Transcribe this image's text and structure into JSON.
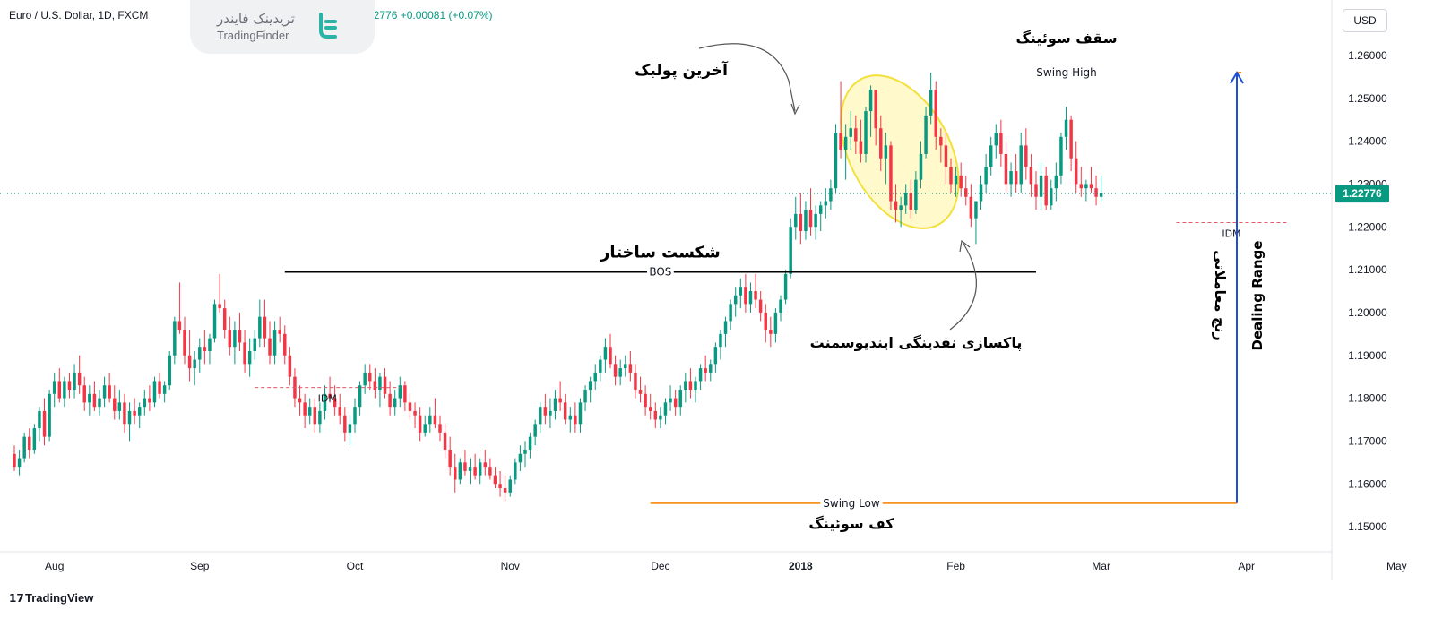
{
  "header": {
    "symbol": "Euro / U.S. Dollar, 1D, FXCM",
    "price_part": "1.22776",
    "change": "+0.00081 (+0.07%)"
  },
  "watermark": {
    "fa": "تریدینک فایندر",
    "en": "TradingFinder"
  },
  "currency_button": "USD",
  "brand": "TradingView",
  "colors": {
    "up": "#089981",
    "down": "#f23645",
    "swing": "#f7931a",
    "range": "#1f4fd8",
    "idm": "#e05a6a",
    "highlight": "#fff4a3",
    "highlight_stroke": "#f2e03b"
  },
  "chart_data": {
    "type": "candlestick",
    "ylim": [
      1.145,
      1.265
    ],
    "y_ticks": [
      "1.26000",
      "1.25000",
      "1.24000",
      "1.23000",
      "1.22000",
      "1.21000",
      "1.20000",
      "1.19000",
      "1.18000",
      "1.17000",
      "1.16000",
      "1.15000"
    ],
    "y_tick_values": [
      1.26,
      1.25,
      1.24,
      1.23,
      1.22,
      1.21,
      1.2,
      1.19,
      1.18,
      1.17,
      1.16,
      1.15
    ],
    "x_ticks": [
      "Aug",
      "Sep",
      "Oct",
      "Nov",
      "Dec",
      "2018",
      "Feb",
      "Mar",
      "Apr",
      "May"
    ],
    "x_tick_index": [
      8,
      37,
      68,
      99,
      129,
      157,
      188,
      217,
      246,
      276
    ],
    "last_price": "1.22776",
    "last_price_value": 1.22776,
    "candles": [
      [
        1.167,
        1.169,
        1.163,
        1.164
      ],
      [
        1.164,
        1.168,
        1.162,
        1.166
      ],
      [
        1.166,
        1.172,
        1.165,
        1.171
      ],
      [
        1.171,
        1.173,
        1.166,
        1.168
      ],
      [
        1.168,
        1.174,
        1.167,
        1.173
      ],
      [
        1.173,
        1.178,
        1.17,
        1.177
      ],
      [
        1.177,
        1.18,
        1.169,
        1.171
      ],
      [
        1.171,
        1.182,
        1.17,
        1.181
      ],
      [
        1.181,
        1.186,
        1.178,
        1.184
      ],
      [
        1.184,
        1.187,
        1.179,
        1.18
      ],
      [
        1.18,
        1.185,
        1.178,
        1.184
      ],
      [
        1.184,
        1.186,
        1.18,
        1.182
      ],
      [
        1.182,
        1.188,
        1.18,
        1.186
      ],
      [
        1.186,
        1.19,
        1.181,
        1.183
      ],
      [
        1.183,
        1.185,
        1.177,
        1.179
      ],
      [
        1.179,
        1.183,
        1.176,
        1.181
      ],
      [
        1.181,
        1.184,
        1.177,
        1.178
      ],
      [
        1.178,
        1.182,
        1.176,
        1.18
      ],
      [
        1.18,
        1.185,
        1.178,
        1.183
      ],
      [
        1.183,
        1.186,
        1.179,
        1.18
      ],
      [
        1.18,
        1.183,
        1.175,
        1.177
      ],
      [
        1.177,
        1.182,
        1.175,
        1.179
      ],
      [
        1.179,
        1.181,
        1.172,
        1.174
      ],
      [
        1.174,
        1.179,
        1.17,
        1.177
      ],
      [
        1.177,
        1.18,
        1.174,
        1.176
      ],
      [
        1.176,
        1.179,
        1.173,
        1.178
      ],
      [
        1.178,
        1.182,
        1.176,
        1.18
      ],
      [
        1.18,
        1.183,
        1.177,
        1.179
      ],
      [
        1.179,
        1.185,
        1.178,
        1.184
      ],
      [
        1.184,
        1.186,
        1.18,
        1.181
      ],
      [
        1.181,
        1.184,
        1.179,
        1.183
      ],
      [
        1.183,
        1.191,
        1.182,
        1.19
      ],
      [
        1.19,
        1.199,
        1.188,
        1.198
      ],
      [
        1.198,
        1.207,
        1.195,
        1.196
      ],
      [
        1.196,
        1.199,
        1.188,
        1.19
      ],
      [
        1.19,
        1.196,
        1.184,
        1.187
      ],
      [
        1.187,
        1.191,
        1.183,
        1.189
      ],
      [
        1.189,
        1.194,
        1.186,
        1.192
      ],
      [
        1.192,
        1.196,
        1.188,
        1.191
      ],
      [
        1.191,
        1.195,
        1.188,
        1.194
      ],
      [
        1.194,
        1.203,
        1.193,
        1.202
      ],
      [
        1.202,
        1.209,
        1.2,
        1.201
      ],
      [
        1.201,
        1.203,
        1.194,
        1.196
      ],
      [
        1.196,
        1.199,
        1.19,
        1.192
      ],
      [
        1.192,
        1.198,
        1.188,
        1.196
      ],
      [
        1.196,
        1.2,
        1.191,
        1.193
      ],
      [
        1.193,
        1.196,
        1.186,
        1.188
      ],
      [
        1.188,
        1.194,
        1.185,
        1.191
      ],
      [
        1.191,
        1.196,
        1.189,
        1.194
      ],
      [
        1.194,
        1.203,
        1.192,
        1.199
      ],
      [
        1.199,
        1.203,
        1.192,
        1.194
      ],
      [
        1.194,
        1.198,
        1.188,
        1.19
      ],
      [
        1.19,
        1.198,
        1.188,
        1.196
      ],
      [
        1.196,
        1.199,
        1.193,
        1.195
      ],
      [
        1.195,
        1.197,
        1.188,
        1.19
      ],
      [
        1.19,
        1.192,
        1.183,
        1.185
      ],
      [
        1.185,
        1.187,
        1.178,
        1.18
      ],
      [
        1.18,
        1.183,
        1.176,
        1.179
      ],
      [
        1.179,
        1.181,
        1.173,
        1.176
      ],
      [
        1.176,
        1.18,
        1.174,
        1.178
      ],
      [
        1.178,
        1.18,
        1.172,
        1.174
      ],
      [
        1.174,
        1.179,
        1.172,
        1.177
      ],
      [
        1.177,
        1.183,
        1.175,
        1.181
      ],
      [
        1.181,
        1.185,
        1.179,
        1.18
      ],
      [
        1.18,
        1.183,
        1.176,
        1.178
      ],
      [
        1.178,
        1.181,
        1.174,
        1.176
      ],
      [
        1.176,
        1.178,
        1.17,
        1.172
      ],
      [
        1.172,
        1.176,
        1.169,
        1.174
      ],
      [
        1.174,
        1.18,
        1.172,
        1.178
      ],
      [
        1.178,
        1.184,
        1.176,
        1.183
      ],
      [
        1.183,
        1.188,
        1.181,
        1.186
      ],
      [
        1.186,
        1.188,
        1.182,
        1.184
      ],
      [
        1.184,
        1.187,
        1.18,
        1.182
      ],
      [
        1.182,
        1.186,
        1.178,
        1.185
      ],
      [
        1.185,
        1.187,
        1.18,
        1.181
      ],
      [
        1.181,
        1.184,
        1.176,
        1.178
      ],
      [
        1.178,
        1.182,
        1.176,
        1.18
      ],
      [
        1.18,
        1.185,
        1.178,
        1.183
      ],
      [
        1.183,
        1.184,
        1.177,
        1.179
      ],
      [
        1.179,
        1.181,
        1.175,
        1.177
      ],
      [
        1.177,
        1.179,
        1.173,
        1.176
      ],
      [
        1.176,
        1.178,
        1.17,
        1.172
      ],
      [
        1.172,
        1.176,
        1.171,
        1.174
      ],
      [
        1.174,
        1.178,
        1.172,
        1.176
      ],
      [
        1.176,
        1.18,
        1.173,
        1.174
      ],
      [
        1.174,
        1.176,
        1.17,
        1.172
      ],
      [
        1.172,
        1.174,
        1.166,
        1.168
      ],
      [
        1.168,
        1.171,
        1.162,
        1.164
      ],
      [
        1.164,
        1.167,
        1.158,
        1.161
      ],
      [
        1.161,
        1.166,
        1.16,
        1.165
      ],
      [
        1.165,
        1.168,
        1.162,
        1.163
      ],
      [
        1.163,
        1.166,
        1.16,
        1.164
      ],
      [
        1.164,
        1.167,
        1.161,
        1.162
      ],
      [
        1.162,
        1.166,
        1.16,
        1.165
      ],
      [
        1.165,
        1.168,
        1.162,
        1.164
      ],
      [
        1.164,
        1.166,
        1.161,
        1.162
      ],
      [
        1.162,
        1.164,
        1.159,
        1.16
      ],
      [
        1.16,
        1.163,
        1.157,
        1.159
      ],
      [
        1.159,
        1.162,
        1.156,
        1.158
      ],
      [
        1.158,
        1.162,
        1.157,
        1.161
      ],
      [
        1.161,
        1.166,
        1.16,
        1.165
      ],
      [
        1.165,
        1.169,
        1.163,
        1.167
      ],
      [
        1.167,
        1.17,
        1.164,
        1.168
      ],
      [
        1.168,
        1.172,
        1.166,
        1.171
      ],
      [
        1.171,
        1.175,
        1.169,
        1.174
      ],
      [
        1.174,
        1.179,
        1.172,
        1.178
      ],
      [
        1.178,
        1.181,
        1.174,
        1.176
      ],
      [
        1.176,
        1.18,
        1.173,
        1.177
      ],
      [
        1.177,
        1.182,
        1.175,
        1.18
      ],
      [
        1.18,
        1.184,
        1.177,
        1.179
      ],
      [
        1.179,
        1.181,
        1.174,
        1.175
      ],
      [
        1.175,
        1.178,
        1.172,
        1.176
      ],
      [
        1.176,
        1.179,
        1.172,
        1.174
      ],
      [
        1.174,
        1.18,
        1.172,
        1.179
      ],
      [
        1.179,
        1.183,
        1.177,
        1.182
      ],
      [
        1.182,
        1.185,
        1.179,
        1.184
      ],
      [
        1.184,
        1.188,
        1.182,
        1.186
      ],
      [
        1.186,
        1.19,
        1.184,
        1.189
      ],
      [
        1.189,
        1.194,
        1.186,
        1.192
      ],
      [
        1.192,
        1.195,
        1.187,
        1.188
      ],
      [
        1.188,
        1.19,
        1.183,
        1.185
      ],
      [
        1.185,
        1.189,
        1.183,
        1.187
      ],
      [
        1.187,
        1.19,
        1.185,
        1.188
      ],
      [
        1.188,
        1.191,
        1.184,
        1.186
      ],
      [
        1.186,
        1.188,
        1.18,
        1.182
      ],
      [
        1.182,
        1.185,
        1.179,
        1.181
      ],
      [
        1.181,
        1.183,
        1.176,
        1.178
      ],
      [
        1.178,
        1.181,
        1.175,
        1.177
      ],
      [
        1.177,
        1.179,
        1.173,
        1.175
      ],
      [
        1.175,
        1.178,
        1.173,
        1.176
      ],
      [
        1.176,
        1.18,
        1.174,
        1.179
      ],
      [
        1.179,
        1.183,
        1.177,
        1.18
      ],
      [
        1.18,
        1.182,
        1.176,
        1.178
      ],
      [
        1.178,
        1.183,
        1.176,
        1.182
      ],
      [
        1.182,
        1.186,
        1.179,
        1.184
      ],
      [
        1.184,
        1.187,
        1.18,
        1.182
      ],
      [
        1.182,
        1.185,
        1.179,
        1.184
      ],
      [
        1.184,
        1.188,
        1.182,
        1.187
      ],
      [
        1.187,
        1.19,
        1.184,
        1.186
      ],
      [
        1.186,
        1.189,
        1.184,
        1.188
      ],
      [
        1.188,
        1.193,
        1.186,
        1.192
      ],
      [
        1.192,
        1.196,
        1.189,
        1.195
      ],
      [
        1.195,
        1.199,
        1.192,
        1.198
      ],
      [
        1.198,
        1.203,
        1.196,
        1.202
      ],
      [
        1.202,
        1.206,
        1.199,
        1.204
      ],
      [
        1.204,
        1.208,
        1.201,
        1.206
      ],
      [
        1.206,
        1.209,
        1.2,
        1.202
      ],
      [
        1.202,
        1.207,
        1.2,
        1.205
      ],
      [
        1.205,
        1.209,
        1.201,
        1.203
      ],
      [
        1.203,
        1.205,
        1.198,
        1.2
      ],
      [
        1.2,
        1.202,
        1.193,
        1.196
      ],
      [
        1.196,
        1.199,
        1.192,
        1.195
      ],
      [
        1.195,
        1.201,
        1.193,
        1.2
      ],
      [
        1.2,
        1.204,
        1.198,
        1.203
      ],
      [
        1.203,
        1.21,
        1.202,
        1.209
      ],
      [
        1.209,
        1.222,
        1.208,
        1.22
      ],
      [
        1.22,
        1.227,
        1.217,
        1.223
      ],
      [
        1.223,
        1.228,
        1.216,
        1.219
      ],
      [
        1.219,
        1.226,
        1.217,
        1.224
      ],
      [
        1.224,
        1.229,
        1.218,
        1.22
      ],
      [
        1.22,
        1.225,
        1.217,
        1.223
      ],
      [
        1.223,
        1.226,
        1.219,
        1.225
      ],
      [
        1.225,
        1.229,
        1.222,
        1.226
      ],
      [
        1.226,
        1.231,
        1.224,
        1.229
      ],
      [
        1.229,
        1.244,
        1.228,
        1.242
      ],
      [
        1.242,
        1.254,
        1.236,
        1.238
      ],
      [
        1.238,
        1.244,
        1.231,
        1.241
      ],
      [
        1.241,
        1.247,
        1.238,
        1.243
      ],
      [
        1.243,
        1.246,
        1.237,
        1.24
      ],
      [
        1.24,
        1.245,
        1.235,
        1.237
      ],
      [
        1.237,
        1.248,
        1.235,
        1.247
      ],
      [
        1.247,
        1.253,
        1.241,
        1.252
      ],
      [
        1.252,
        1.252,
        1.239,
        1.243
      ],
      [
        1.243,
        1.246,
        1.233,
        1.236
      ],
      [
        1.236,
        1.242,
        1.23,
        1.239
      ],
      [
        1.239,
        1.24,
        1.224,
        1.226
      ],
      [
        1.226,
        1.23,
        1.221,
        1.224
      ],
      [
        1.224,
        1.227,
        1.22,
        1.225
      ],
      [
        1.225,
        1.23,
        1.223,
        1.228
      ],
      [
        1.228,
        1.231,
        1.222,
        1.224
      ],
      [
        1.224,
        1.233,
        1.223,
        1.231
      ],
      [
        1.231,
        1.24,
        1.229,
        1.237
      ],
      [
        1.237,
        1.248,
        1.236,
        1.246
      ],
      [
        1.246,
        1.256,
        1.244,
        1.252
      ],
      [
        1.252,
        1.254,
        1.238,
        1.241
      ],
      [
        1.241,
        1.243,
        1.235,
        1.239
      ],
      [
        1.239,
        1.242,
        1.23,
        1.234
      ],
      [
        1.234,
        1.236,
        1.228,
        1.23
      ],
      [
        1.23,
        1.234,
        1.227,
        1.232
      ],
      [
        1.232,
        1.235,
        1.227,
        1.229
      ],
      [
        1.229,
        1.232,
        1.225,
        1.227
      ],
      [
        1.227,
        1.23,
        1.22,
        1.222
      ],
      [
        1.222,
        1.226,
        1.216,
        1.226
      ],
      [
        1.226,
        1.232,
        1.224,
        1.23
      ],
      [
        1.23,
        1.237,
        1.228,
        1.234
      ],
      [
        1.234,
        1.241,
        1.232,
        1.239
      ],
      [
        1.239,
        1.244,
        1.236,
        1.242
      ],
      [
        1.242,
        1.245,
        1.234,
        1.237
      ],
      [
        1.237,
        1.24,
        1.228,
        1.23
      ],
      [
        1.23,
        1.235,
        1.227,
        1.233
      ],
      [
        1.233,
        1.237,
        1.228,
        1.23
      ],
      [
        1.23,
        1.242,
        1.228,
        1.239
      ],
      [
        1.239,
        1.243,
        1.231,
        1.234
      ],
      [
        1.234,
        1.237,
        1.227,
        1.23
      ],
      [
        1.23,
        1.233,
        1.224,
        1.227
      ],
      [
        1.227,
        1.235,
        1.224,
        1.232
      ],
      [
        1.232,
        1.234,
        1.224,
        1.225
      ],
      [
        1.225,
        1.231,
        1.224,
        1.229
      ],
      [
        1.229,
        1.235,
        1.226,
        1.232
      ],
      [
        1.232,
        1.242,
        1.23,
        1.241
      ],
      [
        1.241,
        1.248,
        1.238,
        1.245
      ],
      [
        1.245,
        1.246,
        1.233,
        1.236
      ],
      [
        1.236,
        1.24,
        1.228,
        1.23
      ],
      [
        1.23,
        1.234,
        1.227,
        1.229
      ],
      [
        1.229,
        1.231,
        1.226,
        1.23
      ],
      [
        1.23,
        1.234,
        1.228,
        1.229
      ],
      [
        1.229,
        1.232,
        1.225,
        1.227
      ],
      [
        1.227,
        1.232,
        1.226,
        1.2278
      ]
    ],
    "annotations": {
      "bos_label": "BOS",
      "bos_title": "شکست ساختار",
      "bos_level": 1.2095,
      "bos_range": [
        54,
        204
      ],
      "idm_label": "IDM",
      "idm_left_level": 1.1825,
      "idm_left_range": [
        48,
        77
      ],
      "idm_right_level": 1.221,
      "idm_right_range": [
        232,
        254
      ],
      "swing_high_label": "Swing High",
      "swing_high_title": "سقف سوئینگ",
      "swing_high_level": 1.256,
      "swing_high_range": [
        245,
        337
      ],
      "swing_low_label": "Swing Low",
      "swing_low_title": "کف سوئینگ",
      "swing_low_level": 1.1555,
      "swing_low_range": [
        127,
        337
      ],
      "last_pullback_title": "آخرین پولبک",
      "idm_sweep_title": "پاکسازی نقدینگی اینديوسمنت",
      "dealing_range_en": "Dealing Range",
      "dealing_range_fa": "رنج معاملاتی"
    }
  }
}
